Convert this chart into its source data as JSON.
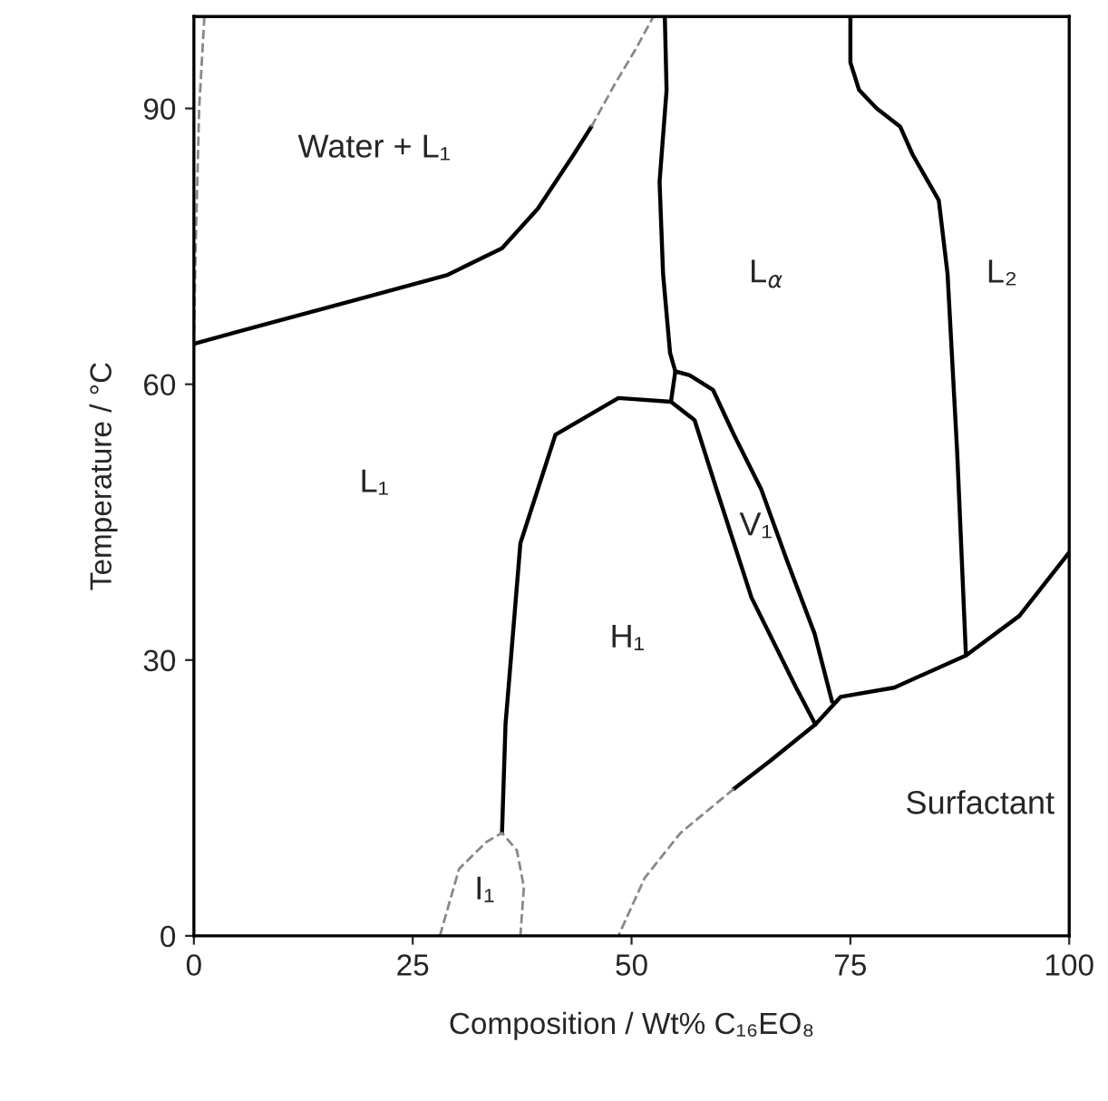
{
  "chart_data": {
    "type": "line",
    "xlabel": "Composition / Wt% C₁₆EO₈",
    "ylabel": "Temperature / °C",
    "xlim": [
      0,
      100
    ],
    "ylim": [
      0,
      100
    ],
    "xticks": [
      0,
      25,
      50,
      75,
      100
    ],
    "yticks": [
      0,
      30,
      60,
      90
    ],
    "grid": false,
    "legend": false,
    "marker": "none",
    "line_style": "solid",
    "series": [
      {
        "color": "#000000",
        "x": [
          0,
          8.8,
          19,
          29,
          35.2,
          39.3,
          43.4,
          45.4
        ],
        "values": [
          64.4,
          66.7,
          69.3,
          71.9,
          74.8,
          79.1,
          85,
          88
        ]
      },
      {
        "color": "#888888",
        "line_style": "dashed",
        "x": [
          45.4,
          48,
          50.5,
          52.5
        ],
        "values": [
          88,
          92.5,
          96.5,
          100
        ]
      },
      {
        "color": "#888888",
        "line_style": "dashed",
        "x": [
          1.2,
          0.6,
          0.2,
          0
        ],
        "values": [
          100,
          90,
          75,
          64.4
        ]
      },
      {
        "color": "#000000",
        "x": [
          53.8,
          54,
          53.2,
          53.6,
          54.4,
          55,
          54.5
        ],
        "values": [
          100,
          92,
          82,
          72,
          63.4,
          61.4,
          58.1
        ]
      },
      {
        "color": "#000000",
        "x": [
          35.2,
          35.6,
          37.3,
          41.3,
          48.5,
          54.5,
          57.2,
          59.7,
          63.7,
          68.8,
          71
        ],
        "values": [
          11.2,
          23,
          42.7,
          54.5,
          58.5,
          58.1,
          56.1,
          48.6,
          36.8,
          27,
          23
        ]
      },
      {
        "color": "#000000",
        "x": [
          55,
          56.6,
          59.3,
          61.7,
          64.8,
          67.8,
          70.9,
          72.9
        ],
        "values": [
          61.4,
          61,
          59.4,
          54.5,
          48.6,
          40.7,
          32.9,
          25.5
        ]
      },
      {
        "color": "#000000",
        "x": [
          75,
          75,
          76,
          78,
          80.7,
          82.1,
          85.1,
          86.1,
          87.2,
          88.2
        ],
        "values": [
          100,
          95,
          92,
          90,
          88,
          85,
          80,
          72,
          52.6,
          30.5
        ]
      },
      {
        "color": "#000000",
        "x": [
          61.7,
          65.8,
          71,
          73.9,
          80,
          88.2,
          94.3,
          100
        ],
        "values": [
          16,
          19,
          23,
          26,
          27,
          30.5,
          34.8,
          41.7
        ]
      },
      {
        "color": "#888888",
        "line_style": "dashed",
        "x": [
          61.7,
          55.6,
          51.5,
          48.5
        ],
        "values": [
          16,
          11.2,
          6.3,
          0
        ]
      },
      {
        "color": "#888888",
        "line_style": "dashed",
        "x": [
          28.1,
          30.3,
          33.4,
          35.2,
          36.9,
          37.7,
          37.3
        ],
        "values": [
          0,
          7.3,
          10.2,
          11.2,
          9.3,
          5.3,
          0
        ]
      }
    ],
    "annotations": [
      "Water + L₁",
      "L$_{α}$",
      "L₂",
      "L₁",
      "V₁",
      "H₁",
      "I₁",
      "Surfactant"
    ]
  }
}
